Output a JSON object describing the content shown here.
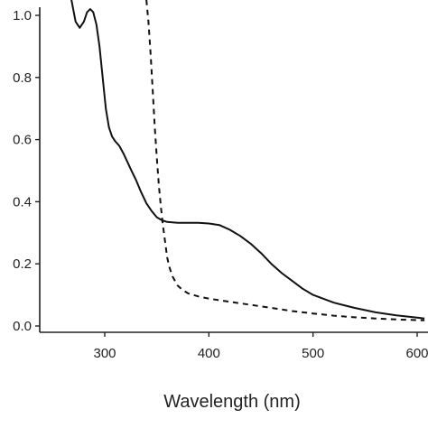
{
  "chart_data": {
    "type": "line",
    "title": "",
    "xlabel": "Wavelength (nm)",
    "ylabel": "",
    "xlim": [
      250,
      610
    ],
    "ylim": [
      0.0,
      1.05
    ],
    "x_ticks": [
      300,
      400,
      500,
      600
    ],
    "x_tick_labels": [
      "300",
      "400",
      "500",
      "600"
    ],
    "y_ticks": [
      0.0,
      0.2,
      0.4,
      0.6,
      0.8,
      1.0
    ],
    "y_tick_labels": [
      "0.0",
      "0.2",
      "0.4",
      "0.6",
      "0.8",
      "1.0"
    ],
    "grid": false,
    "legend": "none",
    "series": [
      {
        "style": "solid",
        "color": "#111111",
        "points": [
          [
            268,
            1.05
          ],
          [
            272,
            0.98
          ],
          [
            276,
            0.96
          ],
          [
            280,
            0.98
          ],
          [
            283,
            1.01
          ],
          [
            286,
            1.02
          ],
          [
            289,
            1.01
          ],
          [
            292,
            0.97
          ],
          [
            295,
            0.9
          ],
          [
            298,
            0.8
          ],
          [
            301,
            0.7
          ],
          [
            304,
            0.64
          ],
          [
            307,
            0.61
          ],
          [
            310,
            0.595
          ],
          [
            314,
            0.58
          ],
          [
            318,
            0.555
          ],
          [
            325,
            0.505
          ],
          [
            330,
            0.47
          ],
          [
            335,
            0.43
          ],
          [
            340,
            0.395
          ],
          [
            345,
            0.37
          ],
          [
            350,
            0.35
          ],
          [
            355,
            0.34
          ],
          [
            360,
            0.335
          ],
          [
            370,
            0.332
          ],
          [
            380,
            0.332
          ],
          [
            390,
            0.332
          ],
          [
            400,
            0.33
          ],
          [
            410,
            0.325
          ],
          [
            420,
            0.31
          ],
          [
            430,
            0.29
          ],
          [
            440,
            0.265
          ],
          [
            450,
            0.235
          ],
          [
            460,
            0.2
          ],
          [
            470,
            0.17
          ],
          [
            480,
            0.145
          ],
          [
            490,
            0.12
          ],
          [
            500,
            0.1
          ],
          [
            520,
            0.075
          ],
          [
            540,
            0.058
          ],
          [
            560,
            0.044
          ],
          [
            580,
            0.034
          ],
          [
            600,
            0.027
          ],
          [
            607,
            0.024
          ]
        ]
      },
      {
        "style": "dashed",
        "color": "#111111",
        "points": [
          [
            340,
            1.05
          ],
          [
            342,
            0.98
          ],
          [
            344,
            0.88
          ],
          [
            346,
            0.76
          ],
          [
            348,
            0.64
          ],
          [
            350,
            0.54
          ],
          [
            352,
            0.45
          ],
          [
            354,
            0.38
          ],
          [
            356,
            0.32
          ],
          [
            358,
            0.27
          ],
          [
            360,
            0.22
          ],
          [
            362,
            0.19
          ],
          [
            365,
            0.16
          ],
          [
            370,
            0.13
          ],
          [
            375,
            0.115
          ],
          [
            380,
            0.105
          ],
          [
            390,
            0.095
          ],
          [
            400,
            0.088
          ],
          [
            420,
            0.078
          ],
          [
            440,
            0.068
          ],
          [
            460,
            0.058
          ],
          [
            480,
            0.048
          ],
          [
            500,
            0.04
          ],
          [
            520,
            0.033
          ],
          [
            540,
            0.028
          ],
          [
            560,
            0.024
          ],
          [
            580,
            0.021
          ],
          [
            600,
            0.019
          ],
          [
            607,
            0.018
          ]
        ]
      }
    ]
  }
}
